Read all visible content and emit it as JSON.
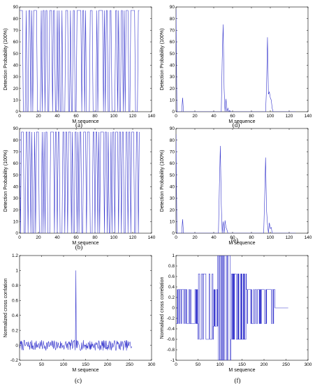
{
  "figure": {
    "panel_labels": [
      "(a)",
      "(d)",
      "(b)",
      "(e)",
      "(c)",
      "(f)"
    ]
  },
  "chart_data": [
    {
      "id": "a",
      "type": "line",
      "panel_label": "(a)",
      "xlabel": "M sequence",
      "ylabel": "Detection Probability (100%)",
      "xlim": [
        0,
        140
      ],
      "ylim": [
        0,
        90
      ],
      "xticks": [
        0,
        20,
        40,
        60,
        80,
        100,
        120,
        140
      ],
      "yticks": [
        0,
        10,
        20,
        30,
        40,
        50,
        60,
        70,
        80,
        90
      ],
      "line_color": "#3333cc",
      "grid": false,
      "binary_high": 87,
      "binary_low": 0,
      "binary_pattern": "11110001001101011110000101101100111011001010010001110010011001111101101000011100001011111010110011000011010011010111001111100011"
    },
    {
      "id": "d",
      "type": "line",
      "panel_label": "(d)",
      "xlabel": "M sequence",
      "ylabel": "Detection Probability (100%)",
      "xlim": [
        0,
        140
      ],
      "ylim": [
        0,
        90
      ],
      "xticks": [
        0,
        20,
        40,
        60,
        80,
        100,
        120,
        140
      ],
      "yticks": [
        0,
        10,
        20,
        30,
        40,
        50,
        60,
        70,
        80,
        90
      ],
      "line_color": "#3333cc",
      "grid": false,
      "series": [
        {
          "x": [
            0,
            1,
            2,
            3,
            4,
            5,
            6,
            7,
            8,
            9,
            10,
            40,
            47,
            48,
            49,
            50,
            51,
            52,
            53,
            54,
            55,
            56,
            57,
            58,
            59,
            60,
            95,
            96,
            97,
            98,
            99,
            100,
            101,
            102,
            103,
            127
          ],
          "y": [
            88,
            0,
            0,
            0,
            0,
            0,
            0,
            12,
            0,
            0,
            0,
            0,
            0,
            0,
            45,
            75,
            20,
            0,
            11,
            0,
            3,
            0,
            1,
            0,
            0,
            0,
            0,
            20,
            64,
            15,
            17,
            12,
            10,
            3,
            0,
            0
          ]
        }
      ]
    },
    {
      "id": "b",
      "type": "line",
      "panel_label": "(b)",
      "xlabel": "M sequence",
      "ylabel": "Detection Probability (100%)",
      "xlim": [
        0,
        140
      ],
      "ylim": [
        0,
        90
      ],
      "xticks": [
        0,
        20,
        40,
        60,
        80,
        100,
        120,
        140
      ],
      "yticks": [
        0,
        10,
        20,
        30,
        40,
        50,
        60,
        70,
        80,
        90
      ],
      "line_color": "#3333cc",
      "grid": false,
      "binary_high": 87,
      "binary_low": 0,
      "binary_pattern": "10111001101101001011100010101100011110110110001101101110100110101100111011100011011010111101101001011011101101100110110111001101"
    },
    {
      "id": "e",
      "type": "line",
      "panel_label": "(e)",
      "xlabel": "M sequence",
      "ylabel": "Detection Probability (100%)",
      "xlim": [
        0,
        140
      ],
      "ylim": [
        0,
        90
      ],
      "xticks": [
        0,
        20,
        40,
        60,
        80,
        100,
        120,
        140
      ],
      "yticks": [
        0,
        10,
        20,
        30,
        40,
        50,
        60,
        70,
        80,
        90
      ],
      "line_color": "#3333cc",
      "grid": false,
      "series": [
        {
          "x": [
            0,
            1,
            2,
            3,
            4,
            5,
            6,
            7,
            8,
            9,
            10,
            40,
            45,
            46,
            47,
            48,
            49,
            50,
            51,
            52,
            53,
            54,
            55,
            56,
            90,
            93,
            94,
            95,
            96,
            97,
            98,
            99,
            100,
            101,
            102,
            127
          ],
          "y": [
            85,
            0,
            0,
            0,
            0,
            0,
            0,
            12,
            0,
            0,
            0,
            0,
            0,
            40,
            75,
            25,
            0,
            10,
            0,
            11,
            5,
            3,
            0,
            0,
            0,
            0,
            30,
            65,
            20,
            8,
            0,
            9,
            4,
            5,
            0,
            0
          ]
        }
      ]
    },
    {
      "id": "c",
      "type": "line",
      "panel_label": "(c)",
      "xlabel": "M sequence",
      "ylabel": "Normalized cross corrlation",
      "xlim": [
        0,
        300
      ],
      "ylim": [
        -0.2,
        1.2
      ],
      "xticks": [
        0,
        50,
        100,
        150,
        200,
        250,
        300
      ],
      "yticks": [
        -0.2,
        0,
        0.2,
        0.4,
        0.6,
        0.8,
        1,
        1.2
      ],
      "line_color": "#3333cc",
      "grid": false,
      "noise_x_range": [
        1,
        255
      ],
      "noise_center": 0.0,
      "noise_amplitude": 0.07,
      "peak": {
        "x": 128,
        "y": 1.0
      }
    },
    {
      "id": "f",
      "type": "line",
      "panel_label": "(f)",
      "xlabel": "M sequence",
      "ylabel": "Normalized cross correlation",
      "xlim": [
        0,
        300
      ],
      "ylim": [
        -1,
        1
      ],
      "xticks": [
        0,
        50,
        100,
        150,
        200,
        250,
        300
      ],
      "yticks": [
        -1,
        -0.8,
        -0.6,
        -0.4,
        -0.2,
        0,
        0.2,
        0.4,
        0.6,
        0.8,
        1
      ],
      "line_color": "#3333cc",
      "grid": false,
      "segments": [
        {
          "x_range": [
            0,
            50
          ],
          "low": -0.3,
          "high": 0.35
        },
        {
          "x_range": [
            50,
            85
          ],
          "low": -0.6,
          "high": 0.65
        },
        {
          "x_range": [
            85,
            95
          ],
          "low": -0.35,
          "high": 0.35
        },
        {
          "x_range": [
            95,
            125
          ],
          "low": -1.0,
          "high": 1.0
        },
        {
          "x_range": [
            125,
            160
          ],
          "low": -0.6,
          "high": 0.65
        },
        {
          "x_range": [
            160,
            225
          ],
          "low": -0.3,
          "high": 0.35
        }
      ],
      "tail": {
        "x_range": [
          225,
          255
        ],
        "y": 0.0
      }
    }
  ]
}
